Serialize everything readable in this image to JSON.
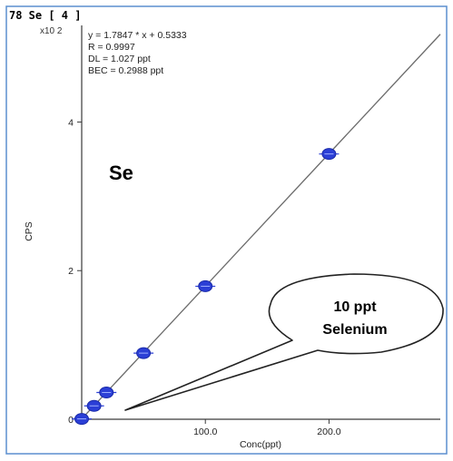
{
  "chart_data": {
    "type": "scatter",
    "title": "78 Se [ 4 ]",
    "xlabel": "Conc(ppt)",
    "ylabel": "CPS",
    "y_multiplier": "x10 2",
    "xlim": [
      0,
      290
    ],
    "ylim": [
      0,
      5.3
    ],
    "x_ticks": [
      "100.0",
      "200.0"
    ],
    "x_tick_values": [
      100,
      200
    ],
    "y_ticks": [
      "0",
      "2",
      "4"
    ],
    "y_tick_values": [
      0,
      2,
      4
    ],
    "points": {
      "x": [
        0,
        10,
        20,
        50,
        100,
        200
      ],
      "y": [
        0.005,
        0.18,
        0.36,
        0.89,
        1.79,
        3.57
      ]
    },
    "fit": {
      "slope": 0.017847,
      "intercept": 0.005333
    },
    "stats": [
      "y = 1.7847 * x  + 0.5333",
      "R =  0.9997",
      "DL = 1.027 ppt",
      "BEC = 0.2988 ppt"
    ],
    "element_label": "Se",
    "callout": [
      "10 ppt",
      "Selenium"
    ],
    "colors": {
      "points": "#2b3fd6",
      "line": "#6b6b6b",
      "frame": "#5b8fcf",
      "axis": "#3a3a3a"
    }
  }
}
